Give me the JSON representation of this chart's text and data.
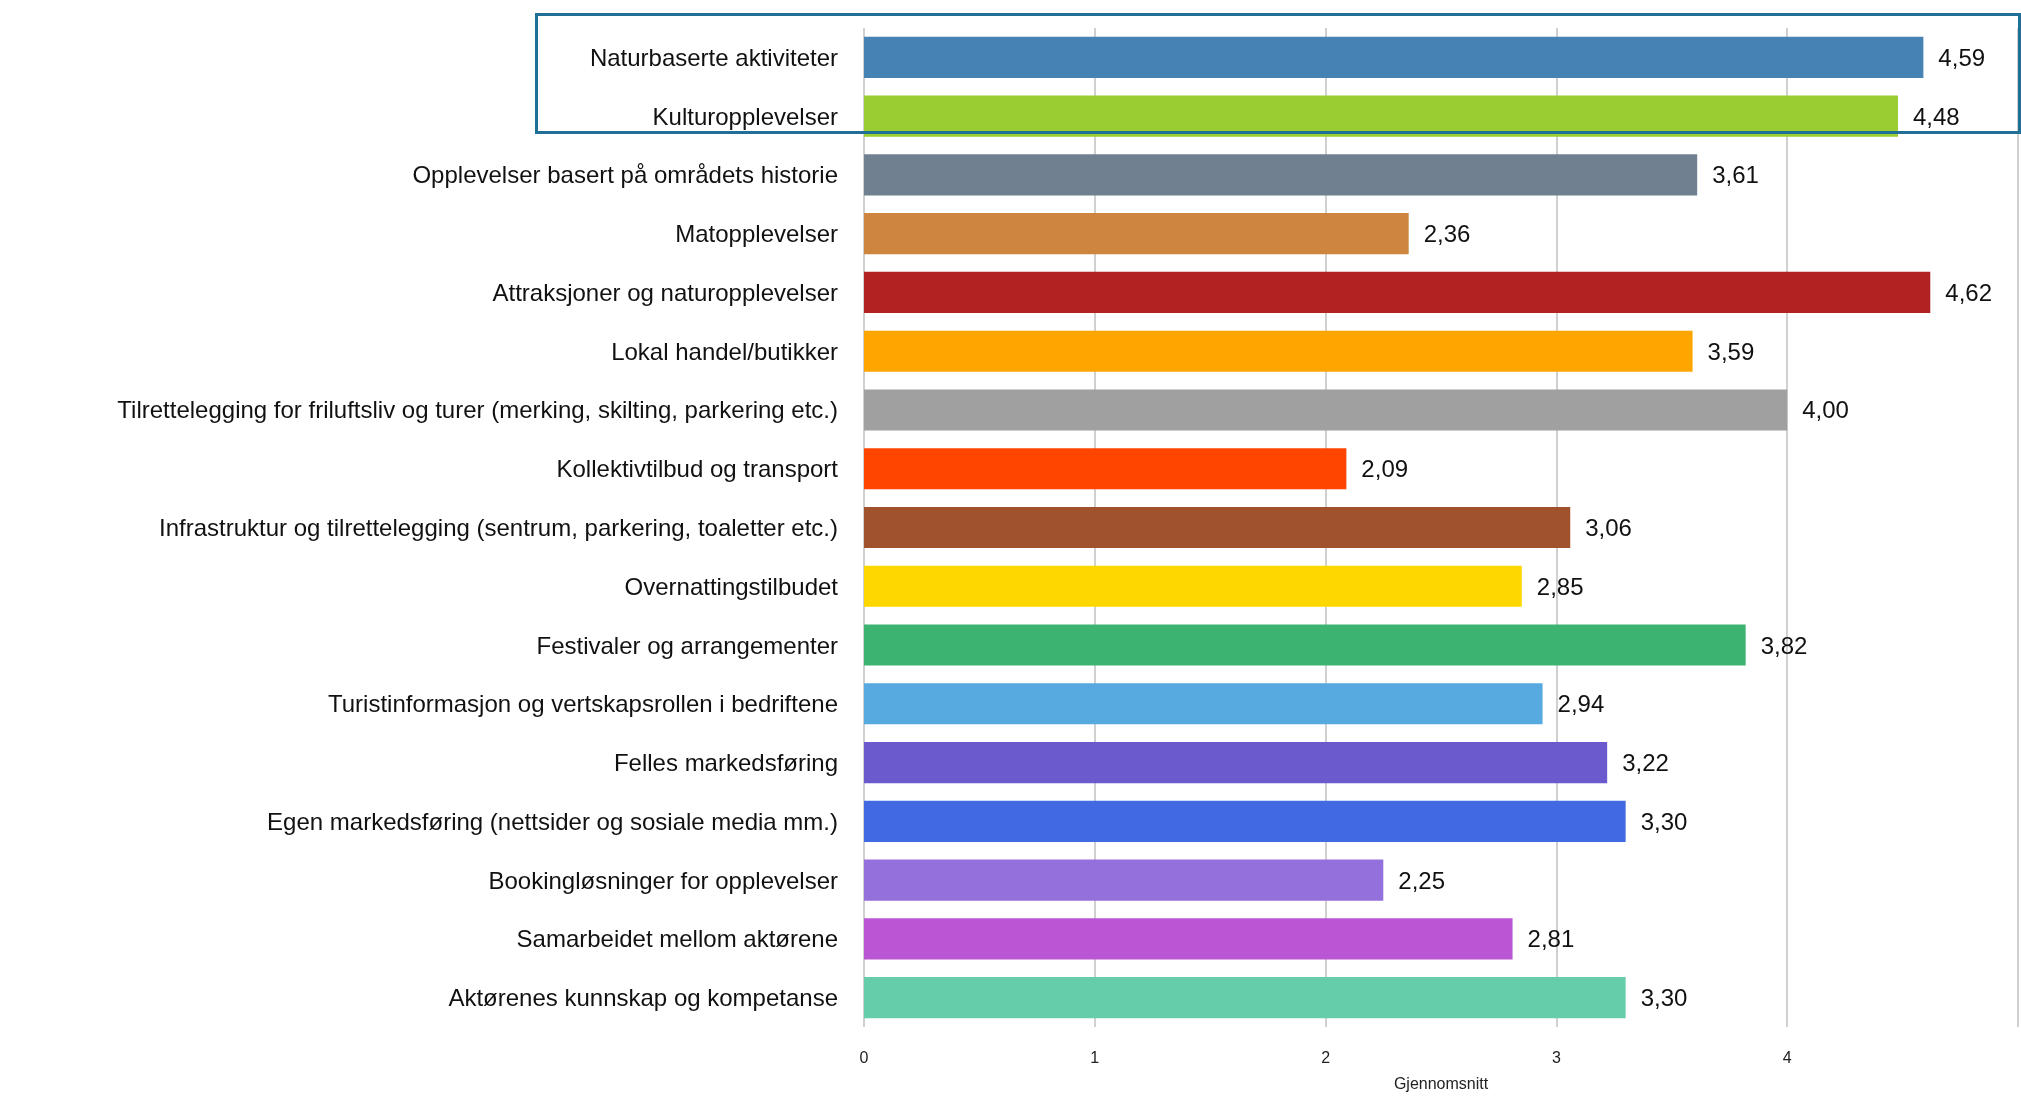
{
  "chart_data": {
    "type": "bar",
    "orientation": "horizontal",
    "xlabel": "Gjennomsnitt",
    "categories": [
      "Naturbaserte aktiviteter",
      "Kulturopplevelser",
      "Opplevelser basert på områdets historie",
      "Matopplevelser",
      "Attraksjoner og naturopplevelser",
      "Lokal handel/butikker",
      "Tilrettelegging for friluftsliv og turer (merking, skilting, parkering etc.)",
      "Kollektivtilbud og transport",
      "Infrastruktur og tilrettelegging (sentrum, parkering, toaletter etc.)",
      "Overnattingstilbudet",
      "Festivaler og arrangementer",
      "Turistinformasjon og vertskapsrollen i bedriftene",
      "Felles markedsføring",
      "Egen markedsføring (nettsider og sosiale media mm.)",
      "Bookingløsninger for opplevelser",
      "Samarbeidet mellom aktørene",
      "Aktørenes kunnskap og kompetanse"
    ],
    "values": [
      4.59,
      4.48,
      3.61,
      2.36,
      4.62,
      3.59,
      4.0,
      2.09,
      3.06,
      2.85,
      3.82,
      2.94,
      3.22,
      3.3,
      2.25,
      2.81,
      3.3
    ],
    "value_labels": [
      "4,59",
      "4,48",
      "3,61",
      "2,36",
      "4,62",
      "3,59",
      "4,00",
      "2,09",
      "3,06",
      "2,85",
      "3,82",
      "2,94",
      "3,22",
      "3,30",
      "2,25",
      "2,81",
      "3,30"
    ],
    "colors": [
      "#4682b4",
      "#9acd32",
      "#708090",
      "#cd853f",
      "#b22222",
      "#ffa500",
      "#a0a0a0",
      "#ff4500",
      "#a0522d",
      "#ffd700",
      "#3cb371",
      "#56aadf",
      "#6a5acd",
      "#4169e1",
      "#9370db",
      "#ba55d3",
      "#66cdaa"
    ],
    "xlim": [
      0,
      5
    ],
    "xticks": [
      0,
      1,
      2,
      3,
      4,
      {
        "value": 5,
        "label": null
      }
    ],
    "grid": "x"
  }
}
